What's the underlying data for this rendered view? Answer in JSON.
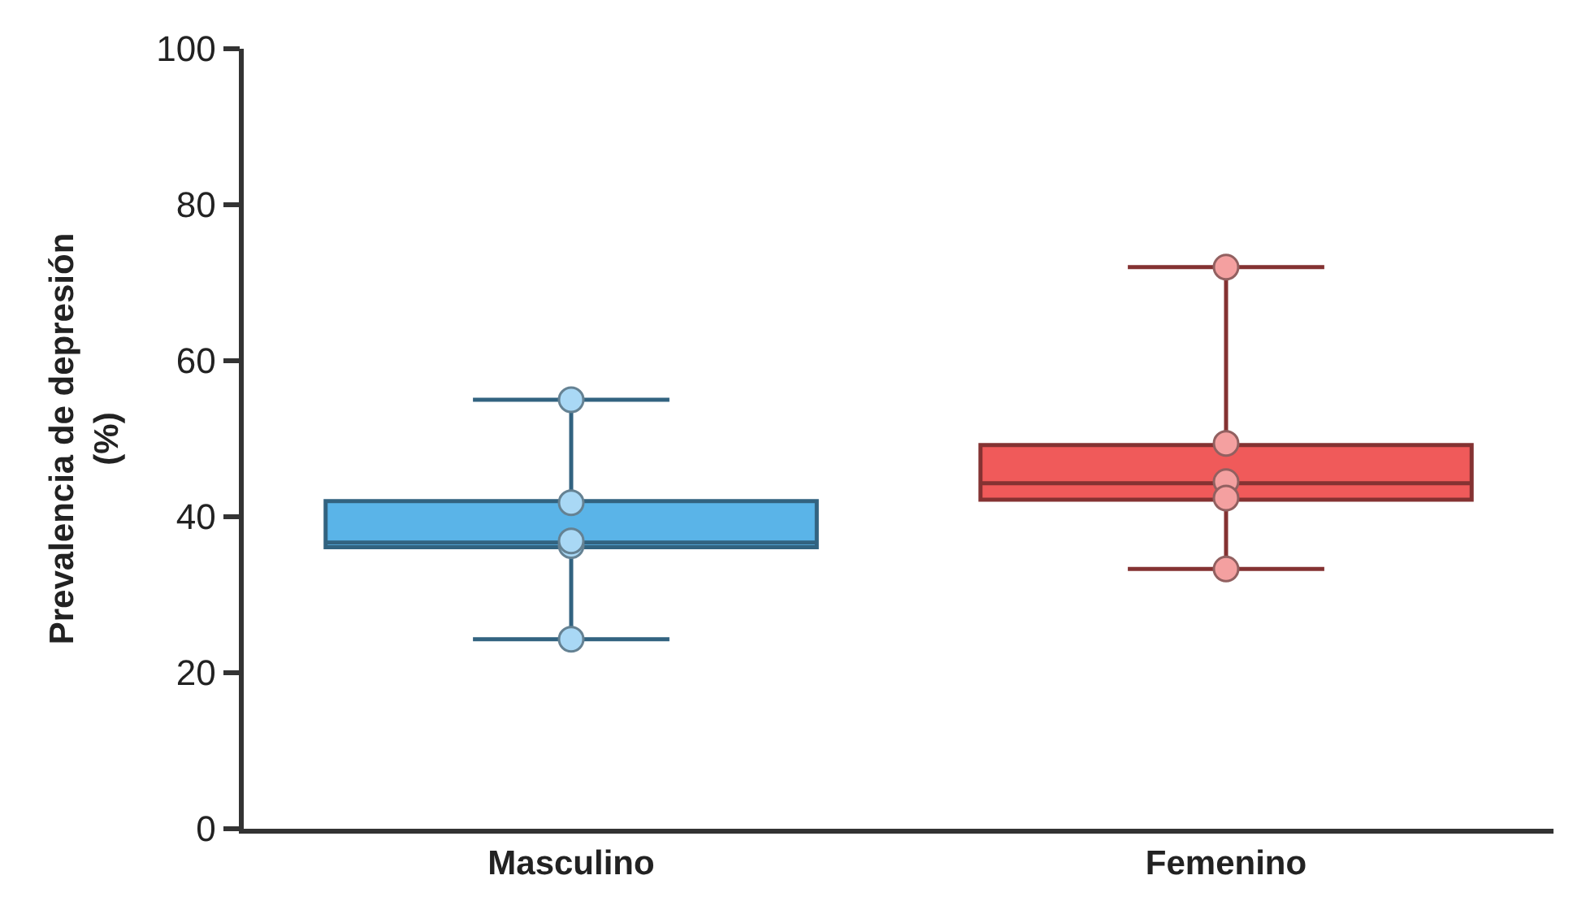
{
  "chart_data": {
    "type": "box",
    "ylabel": "Prevalencia de depresión (%)",
    "categories": [
      "Masculino",
      "Femenino"
    ],
    "ylim": [
      0,
      100
    ],
    "yticks": [
      0,
      20,
      40,
      60,
      80,
      100
    ],
    "grid": false,
    "series": [
      {
        "type": "box",
        "colors": [
          "#5ab4e8",
          "#f05a5a"
        ],
        "boxes": [
          {
            "low": 24.3,
            "q1": 36.1,
            "median": 36.7,
            "q3": 42,
            "high": 55
          },
          {
            "low": 33.3,
            "q1": 42.2,
            "median": 44.3,
            "q3": 49.2,
            "high": 72
          }
        ]
      },
      {
        "type": "scatter",
        "marker": "circle",
        "x": [
          "Masculino",
          "Masculino",
          "Masculino",
          "Masculino",
          "Masculino",
          "Femenino",
          "Femenino",
          "Femenino",
          "Femenino",
          "Femenino"
        ],
        "values": [
          55,
          41.8,
          36.3,
          36.9,
          24.3,
          72,
          49.4,
          44.5,
          42.4,
          33.3
        ],
        "colors": [
          "#a9d8f5",
          "#a9d8f5",
          "#a9d8f5",
          "#a9d8f5",
          "#a9d8f5",
          "#f4a0a0",
          "#f4a0a0",
          "#f4a0a0",
          "#f4a0a0",
          "#f4a0a0"
        ]
      }
    ]
  }
}
